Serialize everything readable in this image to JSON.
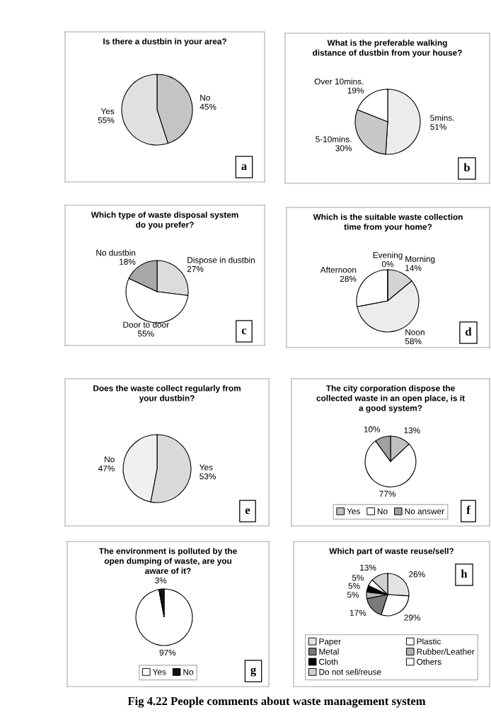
{
  "chart_data": [
    {
      "type": "pie",
      "title": "Is there a dustbin in your area?",
      "categories": [
        "No",
        "Yes"
      ],
      "values": [
        45,
        55
      ],
      "value_labels": [
        "45%",
        "55%"
      ],
      "colors": [
        "#c4c4c4",
        "#e0e0e0"
      ],
      "annotations": [
        "a"
      ]
    },
    {
      "type": "pie",
      "title": "What is the preferable walking\ndistance of dustbin from your house?",
      "categories": [
        "5mins.",
        "5-10mins.",
        "Over 10mins."
      ],
      "values": [
        51,
        30,
        19
      ],
      "value_labels": [
        "51%",
        "30%",
        "19%"
      ],
      "colors": [
        "#ececec",
        "#c8c8c8",
        "#ffffff"
      ],
      "annotations": [
        "b"
      ]
    },
    {
      "type": "pie",
      "title": "Which type of waste disposal system\ndo you prefer?",
      "categories": [
        "Dispose in dustbin",
        "Door to door",
        "No dustbin"
      ],
      "values": [
        27,
        55,
        18
      ],
      "value_labels": [
        "27%",
        "55%",
        "18%"
      ],
      "colors": [
        "#dcdcdc",
        "#ffffff",
        "#a8a8a8"
      ],
      "annotations": [
        "c"
      ]
    },
    {
      "type": "pie",
      "title": "Which is the suitable waste collection\ntime from your home?",
      "categories": [
        "Morning",
        "Noon",
        "Afternoon",
        "Evening"
      ],
      "values": [
        14,
        58,
        28,
        0
      ],
      "value_labels": [
        "14%",
        "58%",
        "28%",
        "0%"
      ],
      "colors": [
        "#d4d4d4",
        "#ececec",
        "#ffffff",
        "#ffffff"
      ],
      "annotations": [
        "d"
      ]
    },
    {
      "type": "pie",
      "title": "Does the waste collect regularly from\nyour dustbin?",
      "categories": [
        "Yes",
        "No"
      ],
      "values": [
        53,
        47
      ],
      "value_labels": [
        "53%",
        "47%"
      ],
      "colors": [
        "#dadada",
        "#f0f0f0"
      ],
      "annotations": [
        "e"
      ]
    },
    {
      "type": "pie",
      "title": "The city corporation dispose the\ncollected waste in an open place, is it\na good system?",
      "categories": [
        "Yes",
        "No",
        "No answer"
      ],
      "values": [
        13,
        77,
        10
      ],
      "value_labels": [
        "13%",
        "77%",
        "10%"
      ],
      "colors": [
        "#c0c0c0",
        "#ffffff",
        "#a0a0a0"
      ],
      "legend": "bottom",
      "annotations": [
        "f"
      ]
    },
    {
      "type": "pie",
      "title": "The environment is polluted by the\nopen dumping of waste, are you\naware of it?",
      "categories": [
        "Yes",
        "No"
      ],
      "values": [
        97,
        3
      ],
      "value_labels": [
        "97%",
        "3%"
      ],
      "colors": [
        "#ffffff",
        "#111111"
      ],
      "legend": "bottom",
      "annotations": [
        "g"
      ]
    },
    {
      "type": "pie",
      "title": "Which part of waste reuse/sell?",
      "categories": [
        "Paper",
        "Plastic",
        "Metal",
        "Rubber/Leather",
        "Cloth",
        "Others",
        "Do not sell/reuse"
      ],
      "values": [
        26,
        29,
        17,
        5,
        5,
        5,
        13
      ],
      "value_labels": [
        "26%",
        "29%",
        "17%",
        "5%",
        "5%",
        "5%",
        "13%"
      ],
      "colors": [
        "#e4e4e4",
        "#ffffff",
        "#7a7a7a",
        "#b4b4b4",
        "#000000",
        "#ffffff",
        "#d0d0d0"
      ],
      "legend": "bottom",
      "annotations": [
        "h",
        "Fig 4.22 People comments about waste management system"
      ]
    }
  ]
}
